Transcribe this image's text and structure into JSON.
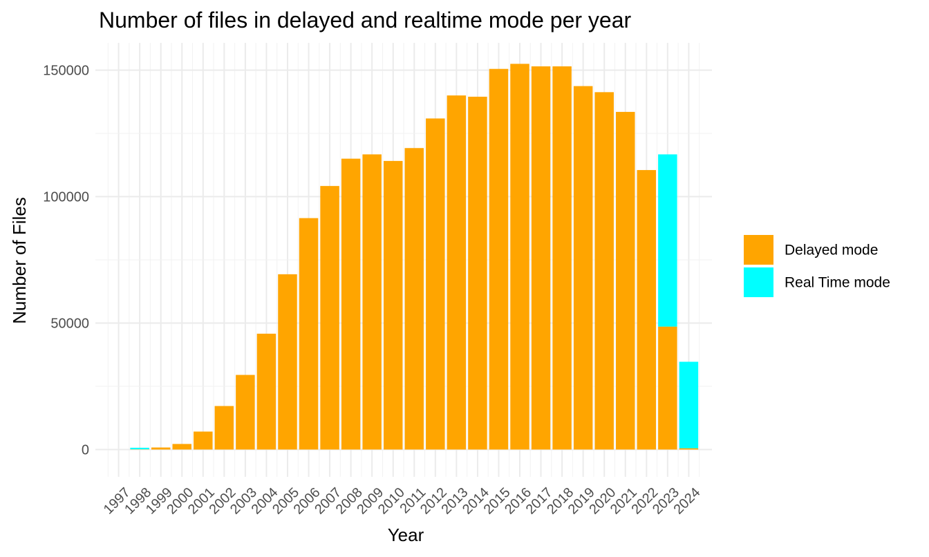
{
  "chart_data": {
    "type": "bar",
    "stacked": true,
    "title": "Number of files in delayed and realtime mode per year",
    "xlabel": "Year",
    "ylabel": "Number of Files",
    "categories": [
      "1997",
      "1998",
      "1999",
      "2000",
      "2001",
      "2002",
      "2003",
      "2004",
      "2005",
      "2006",
      "2007",
      "2008",
      "2009",
      "2010",
      "2011",
      "2012",
      "2013",
      "2014",
      "2015",
      "2016",
      "2017",
      "2018",
      "2019",
      "2020",
      "2021",
      "2022",
      "2023",
      "2024"
    ],
    "series": [
      {
        "name": "Delayed mode",
        "color": "#FFA500",
        "values": [
          0,
          100,
          800,
          2200,
          7100,
          17200,
          29500,
          45800,
          69300,
          91500,
          104200,
          115000,
          116700,
          114100,
          119200,
          130900,
          140000,
          139500,
          150500,
          152500,
          151500,
          151500,
          143700,
          141300,
          133500,
          110500,
          48600,
          500
        ]
      },
      {
        "name": "Real Time mode",
        "color": "#00FFFF",
        "values": [
          0,
          600,
          0,
          0,
          0,
          0,
          0,
          0,
          0,
          0,
          0,
          0,
          0,
          0,
          0,
          0,
          0,
          0,
          0,
          0,
          0,
          0,
          0,
          0,
          0,
          0,
          68100,
          34200
        ]
      }
    ],
    "ylim": [
      -10800,
      160800
    ],
    "yticks": [
      0,
      50000,
      100000,
      150000
    ],
    "ytick_labels": [
      "0",
      "50000",
      "100000",
      "150000"
    ],
    "grid": true,
    "legend_position": "right"
  }
}
